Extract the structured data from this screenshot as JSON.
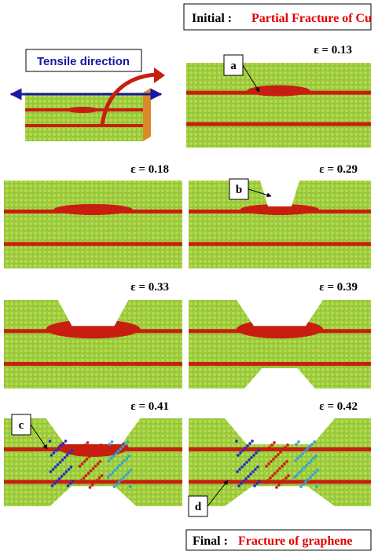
{
  "header": {
    "prefix": "Initial :",
    "title": "Partial Fracture of Cu"
  },
  "inset": {
    "label": "Tensile direction"
  },
  "panels": [
    {
      "strain": "ε = 0.13",
      "tag": "a"
    },
    {
      "strain": "ε = 0.18"
    },
    {
      "strain": "ε = 0.29",
      "tag": "b"
    },
    {
      "strain": "ε = 0.33"
    },
    {
      "strain": "ε = 0.39"
    },
    {
      "strain": "ε = 0.41",
      "tag": "c"
    },
    {
      "strain": "ε = 0.42",
      "tag": "d"
    }
  ],
  "footer": {
    "prefix": "Final :",
    "title": "Fracture of graphene"
  }
}
